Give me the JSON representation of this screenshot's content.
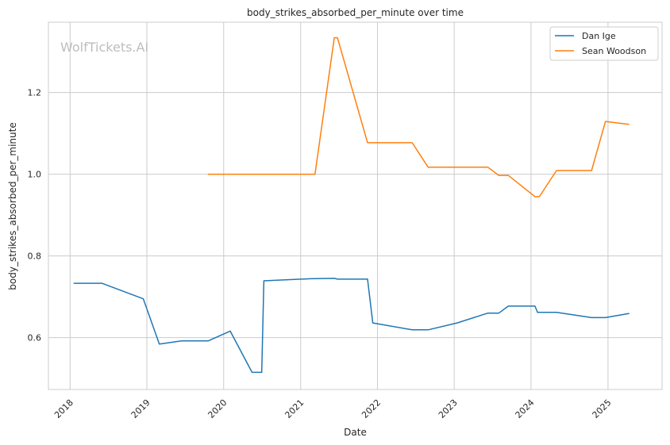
{
  "chart_data": {
    "type": "line",
    "title": "body_strikes_absorbed_per_minute over time",
    "xlabel": "Date",
    "ylabel": "body_strikes_absorbed_per_minute",
    "watermark": "WolfTickets.AI",
    "x_axis": "date",
    "xlim": [
      "2017-09-20",
      "2025-09-15"
    ],
    "ylim": [
      0.473,
      1.372
    ],
    "x_ticks": [
      "2018",
      "2019",
      "2020",
      "2021",
      "2022",
      "2023",
      "2024",
      "2025"
    ],
    "y_ticks": [
      0.6,
      0.8,
      1.0,
      1.2
    ],
    "y_tick_labels": [
      "0.6",
      "0.8",
      "1.0",
      "1.2"
    ],
    "grid": true,
    "legend_position": "top-right",
    "series": [
      {
        "name": "Dan Ige",
        "color": "#1f77b4",
        "points": [
          [
            "2018-01-20",
            0.733
          ],
          [
            "2018-06-01",
            0.733
          ],
          [
            "2018-12-15",
            0.695
          ],
          [
            "2019-03-01",
            0.584
          ],
          [
            "2019-06-15",
            0.592
          ],
          [
            "2019-10-20",
            0.592
          ],
          [
            "2020-02-01",
            0.616
          ],
          [
            "2020-05-15",
            0.515
          ],
          [
            "2020-06-30",
            0.515
          ],
          [
            "2020-07-10",
            0.739
          ],
          [
            "2021-02-15",
            0.744
          ],
          [
            "2021-06-10",
            0.745
          ],
          [
            "2021-06-25",
            0.743
          ],
          [
            "2021-11-15",
            0.743
          ],
          [
            "2021-12-10",
            0.636
          ],
          [
            "2022-06-15",
            0.619
          ],
          [
            "2022-08-30",
            0.619
          ],
          [
            "2023-01-15",
            0.636
          ],
          [
            "2023-06-10",
            0.66
          ],
          [
            "2023-08-01",
            0.66
          ],
          [
            "2023-09-15",
            0.677
          ],
          [
            "2024-01-20",
            0.677
          ],
          [
            "2024-02-01",
            0.662
          ],
          [
            "2024-05-01",
            0.662
          ],
          [
            "2024-10-15",
            0.649
          ],
          [
            "2024-12-20",
            0.649
          ],
          [
            "2025-04-10",
            0.659
          ]
        ]
      },
      {
        "name": "Sean Woodson",
        "color": "#ff7f0e",
        "points": [
          [
            "2019-10-20",
            1.0
          ],
          [
            "2021-03-10",
            1.0
          ],
          [
            "2021-06-10",
            1.334
          ],
          [
            "2021-06-25",
            1.334
          ],
          [
            "2021-11-15",
            1.077
          ],
          [
            "2022-06-15",
            1.077
          ],
          [
            "2022-08-30",
            1.017
          ],
          [
            "2023-06-10",
            1.017
          ],
          [
            "2023-08-01",
            0.997
          ],
          [
            "2023-09-15",
            0.997
          ],
          [
            "2024-01-20",
            0.945
          ],
          [
            "2024-02-10",
            0.945
          ],
          [
            "2024-05-01",
            1.009
          ],
          [
            "2024-10-15",
            1.009
          ],
          [
            "2024-12-20",
            1.129
          ],
          [
            "2025-04-10",
            1.122
          ]
        ]
      }
    ]
  }
}
